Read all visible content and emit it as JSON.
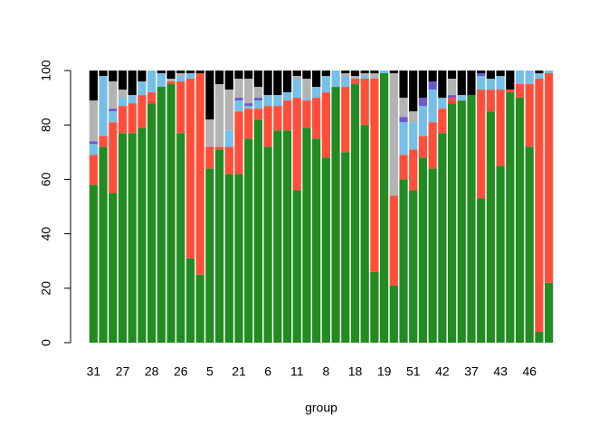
{
  "chart_data": {
    "type": "stacked_bar",
    "xlabel": "group",
    "categories": [
      "31",
      null,
      null,
      "27",
      null,
      null,
      "28",
      null,
      null,
      "26",
      null,
      null,
      "5",
      null,
      null,
      "21",
      null,
      null,
      "6",
      null,
      null,
      "11",
      null,
      null,
      "8",
      null,
      null,
      "18",
      null,
      null,
      "19",
      null,
      null,
      "51",
      null,
      null,
      "42",
      null,
      null,
      "37",
      null,
      null,
      "43",
      null,
      null,
      "46",
      null,
      null
    ],
    "series": [
      {
        "color": "#228b22",
        "values": [
          58,
          72,
          55,
          77,
          77,
          79,
          88,
          94,
          95,
          77,
          31,
          25,
          64,
          71,
          62,
          62,
          75,
          82,
          72,
          78,
          78,
          56,
          79,
          75,
          68,
          94,
          70,
          95,
          80,
          26,
          99,
          21,
          60,
          56,
          68,
          64,
          77,
          88,
          89,
          91,
          53,
          85,
          65,
          92,
          90,
          72,
          4,
          22
        ]
      },
      {
        "color": "#ff4f3a",
        "values": [
          11,
          4,
          26,
          10,
          11,
          12,
          4,
          0,
          1,
          19,
          66,
          74,
          8,
          1,
          10,
          23,
          11,
          4,
          15,
          9,
          11,
          34,
          10,
          15,
          24,
          0,
          24,
          2,
          17,
          71,
          0,
          33,
          9,
          15,
          8,
          17,
          9,
          2,
          0,
          0,
          40,
          8,
          28,
          1,
          5,
          23,
          93,
          77
        ]
      },
      {
        "color": "#76bfe8",
        "values": [
          4,
          22,
          4,
          3,
          3,
          5,
          8,
          5,
          0,
          2,
          2,
          0,
          0,
          0,
          6,
          4,
          1,
          3,
          4,
          4,
          3,
          7,
          1,
          4,
          6,
          6,
          4,
          0,
          1,
          0,
          1,
          0,
          12,
          10,
          11,
          12,
          4,
          0,
          2,
          0,
          5,
          4,
          5,
          0,
          5,
          5,
          2,
          1
        ]
      },
      {
        "color": "#6a5acd",
        "values": [
          1,
          0,
          1,
          0,
          0,
          0,
          0,
          0,
          0,
          0,
          0,
          0,
          0,
          0,
          0,
          1,
          1,
          1,
          0,
          0,
          0,
          0,
          0,
          0,
          0,
          0,
          0,
          0,
          0,
          0,
          0,
          0,
          2,
          0,
          3,
          3,
          0,
          1,
          0,
          0,
          1,
          0,
          0,
          0,
          0,
          0,
          0,
          0
        ]
      },
      {
        "color": "#b3b3b3",
        "values": [
          15,
          0,
          10,
          3,
          0,
          0,
          0,
          0,
          1,
          1,
          0,
          0,
          10,
          23,
          15,
          7,
          9,
          4,
          0,
          0,
          0,
          1,
          7,
          0,
          0,
          0,
          1,
          1,
          1,
          2,
          0,
          45,
          7,
          4,
          0,
          0,
          0,
          6,
          0,
          0,
          0,
          0,
          0,
          0,
          0,
          0,
          0,
          0
        ]
      },
      {
        "color": "#000000",
        "values": [
          11,
          2,
          4,
          7,
          9,
          4,
          0,
          1,
          3,
          1,
          1,
          1,
          18,
          5,
          7,
          3,
          3,
          6,
          9,
          9,
          8,
          2,
          3,
          6,
          2,
          0,
          1,
          2,
          1,
          1,
          0,
          1,
          10,
          15,
          10,
          4,
          10,
          3,
          9,
          9,
          1,
          3,
          2,
          7,
          0,
          0,
          1,
          0
        ]
      }
    ],
    "ylim": [
      0,
      100
    ],
    "yticks": [
      0,
      20,
      40,
      60,
      80,
      100
    ]
  }
}
